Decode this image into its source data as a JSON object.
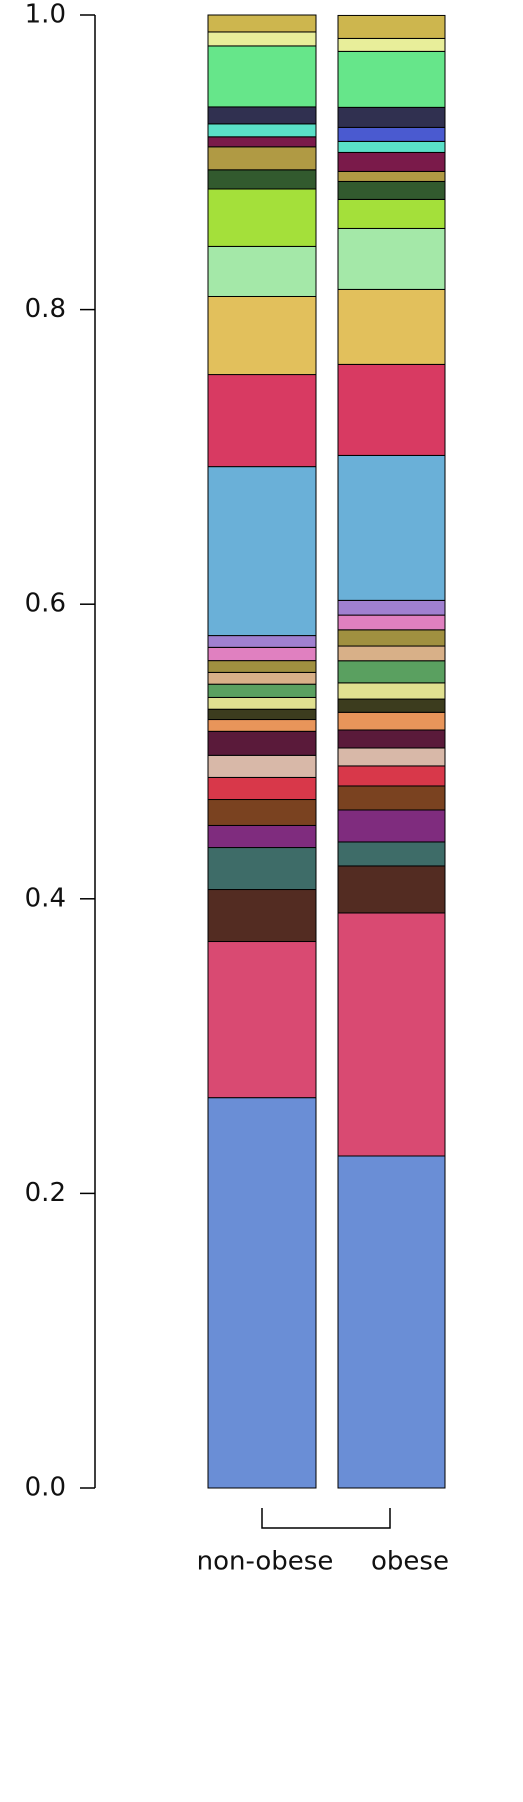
{
  "chart_data": {
    "type": "stacked_bar",
    "categories": [
      "non-obese",
      "obese"
    ],
    "ylim": [
      0,
      1
    ],
    "yticks": [
      {
        "value": 0,
        "label": "0.0"
      },
      0.2,
      0.4,
      0.6,
      0.8,
      {
        "value": 1,
        "label": "1.0"
      }
    ],
    "series": [
      {
        "color": "#6a8ed6",
        "values": [
          0.265,
          0.2254
        ]
      },
      {
        "color": "#d94a72",
        "values": [
          0.106,
          0.165
        ]
      },
      {
        "color": "#532c22",
        "values": [
          0.0353,
          0.0319
        ]
      },
      {
        "color": "#3e6c68",
        "values": [
          0.0285,
          0.0163
        ]
      },
      {
        "color": "#7f2c7e",
        "values": [
          0.015,
          0.0217
        ]
      },
      {
        "color": "#7a4220",
        "values": [
          0.0176,
          0.0163
        ]
      },
      {
        "color": "#d8384a",
        "values": [
          0.015,
          0.0136
        ]
      },
      {
        "color": "#d8b8a8",
        "values": [
          0.015,
          0.0122
        ]
      },
      {
        "color": "#5a1a3a",
        "values": [
          0.0163,
          0.0122
        ]
      },
      {
        "color": "#e8955a",
        "values": [
          0.008,
          0.012
        ]
      },
      {
        "color": "#3c3c1e",
        "values": [
          0.007,
          0.009
        ]
      },
      {
        "color": "#e0e090",
        "values": [
          0.008,
          0.011
        ]
      },
      {
        "color": "#5aa060",
        "values": [
          0.009,
          0.015
        ]
      },
      {
        "color": "#d8b088",
        "values": [
          0.008,
          0.01
        ]
      },
      {
        "color": "#a09040",
        "values": [
          0.008,
          0.011
        ]
      },
      {
        "color": "#e080c0",
        "values": [
          0.009,
          0.01
        ]
      },
      {
        "color": "#a080d0",
        "values": [
          0.008,
          0.01
        ]
      },
      {
        "color": "#6ab0d8",
        "values": [
          0.1147,
          0.0984
        ]
      },
      {
        "color": "#d83a62",
        "values": [
          0.0625,
          0.0618
        ]
      },
      {
        "color": "#e2c05c",
        "values": [
          0.053,
          0.0509
        ]
      },
      {
        "color": "#a4e8a8",
        "values": [
          0.034,
          0.0414
        ]
      },
      {
        "color": "#a4e03a",
        "values": [
          0.039,
          0.0197
        ]
      },
      {
        "color": "#325a2e",
        "values": [
          0.013,
          0.0122
        ]
      },
      {
        "color": "#b09a44",
        "values": [
          0.0156,
          0.0068
        ]
      },
      {
        "color": "#7a1a4a",
        "values": [
          0.0068,
          0.0129
        ]
      },
      {
        "color": "#5ae0c8",
        "values": [
          0.0088,
          0.0075
        ]
      },
      {
        "color": "#4a5ad0",
        "values": [
          0,
          0.0095
        ]
      },
      {
        "color": "#303050",
        "values": [
          0.0115,
          0.0136
        ]
      },
      {
        "color": "#66e68a",
        "values": [
          0.0414,
          0.038
        ]
      },
      {
        "color": "#e8ee9a",
        "values": [
          0.0095,
          0.0088
        ]
      },
      {
        "color": "#cdb64e",
        "values": [
          0.0115,
          0.0156
        ]
      }
    ]
  }
}
